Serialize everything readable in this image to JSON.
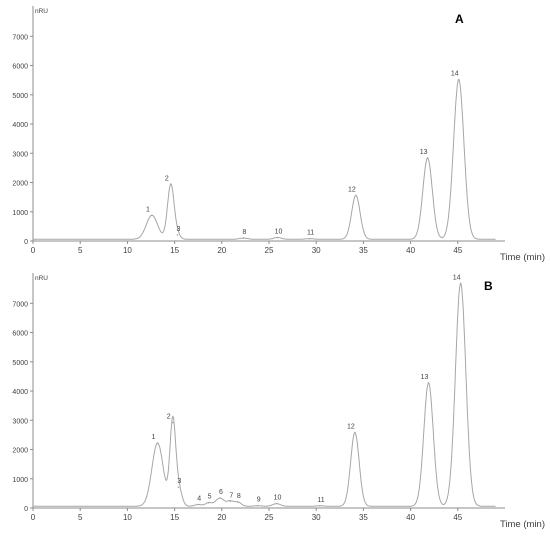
{
  "chart_data": [
    {
      "type": "line",
      "panel_label": "A",
      "y_unit": "nRU",
      "xlabel": "Time (min)",
      "xlim": [
        0,
        50
      ],
      "ylim": [
        0,
        8000
      ],
      "x_ticks": [
        0,
        5,
        10,
        15,
        20,
        25,
        30,
        35,
        40,
        45
      ],
      "y_ticks": [
        0,
        1000,
        2000,
        3000,
        4000,
        5000,
        6000,
        7000
      ],
      "color": "#a6a6a6",
      "baseline": 60,
      "peaks": [
        {
          "label": "1",
          "rt": 12.6,
          "height": 820,
          "width": 0.6
        },
        {
          "label": "2",
          "rt": 14.6,
          "height": 1880,
          "width": 0.35
        },
        {
          "label": "3",
          "rt": 15.3,
          "height": 150,
          "width": 0.3
        },
        {
          "label": "8",
          "rt": 22.3,
          "height": 40,
          "width": 0.4
        },
        {
          "label": "10",
          "rt": 25.9,
          "height": 60,
          "width": 0.4
        },
        {
          "label": "11",
          "rt": 29.3,
          "height": 20,
          "width": 0.4
        },
        {
          "label": "12",
          "rt": 34.2,
          "height": 1500,
          "width": 0.45
        },
        {
          "label": "13",
          "rt": 41.8,
          "height": 2780,
          "width": 0.5
        },
        {
          "label": "14",
          "rt": 45.1,
          "height": 5460,
          "width": 0.55
        }
      ]
    },
    {
      "type": "line",
      "panel_label": "B",
      "y_unit": "nRU",
      "xlabel": "Time (min)",
      "xlim": [
        0,
        50
      ],
      "ylim": [
        0,
        8000
      ],
      "x_ticks": [
        0,
        5,
        10,
        15,
        20,
        25,
        30,
        35,
        40,
        45
      ],
      "y_ticks": [
        0,
        1000,
        2000,
        3000,
        4000,
        5000,
        6000,
        7000
      ],
      "color": "#a6a6a6",
      "baseline": 60,
      "peaks": [
        {
          "label": "1",
          "rt": 13.2,
          "height": 2160,
          "width": 0.6
        },
        {
          "label": "2",
          "rt": 14.8,
          "height": 2860,
          "width": 0.3
        },
        {
          "label": "3",
          "rt": 15.4,
          "height": 650,
          "width": 0.35
        },
        {
          "label": "4",
          "rt": 17.5,
          "height": 60,
          "width": 0.35
        },
        {
          "label": "5",
          "rt": 18.6,
          "height": 120,
          "width": 0.35
        },
        {
          "label": "6",
          "rt": 19.8,
          "height": 280,
          "width": 0.45
        },
        {
          "label": "7",
          "rt": 20.9,
          "height": 170,
          "width": 0.35
        },
        {
          "label": "8",
          "rt": 21.7,
          "height": 140,
          "width": 0.35
        },
        {
          "label": "9",
          "rt": 23.8,
          "height": 20,
          "width": 0.35
        },
        {
          "label": "10",
          "rt": 25.8,
          "height": 90,
          "width": 0.4
        },
        {
          "label": "11",
          "rt": 30.4,
          "height": 15,
          "width": 0.4
        },
        {
          "label": "12",
          "rt": 34.1,
          "height": 2520,
          "width": 0.45
        },
        {
          "label": "13",
          "rt": 41.9,
          "height": 4220,
          "width": 0.5
        },
        {
          "label": "14",
          "rt": 45.3,
          "height": 7620,
          "width": 0.55
        }
      ]
    }
  ]
}
